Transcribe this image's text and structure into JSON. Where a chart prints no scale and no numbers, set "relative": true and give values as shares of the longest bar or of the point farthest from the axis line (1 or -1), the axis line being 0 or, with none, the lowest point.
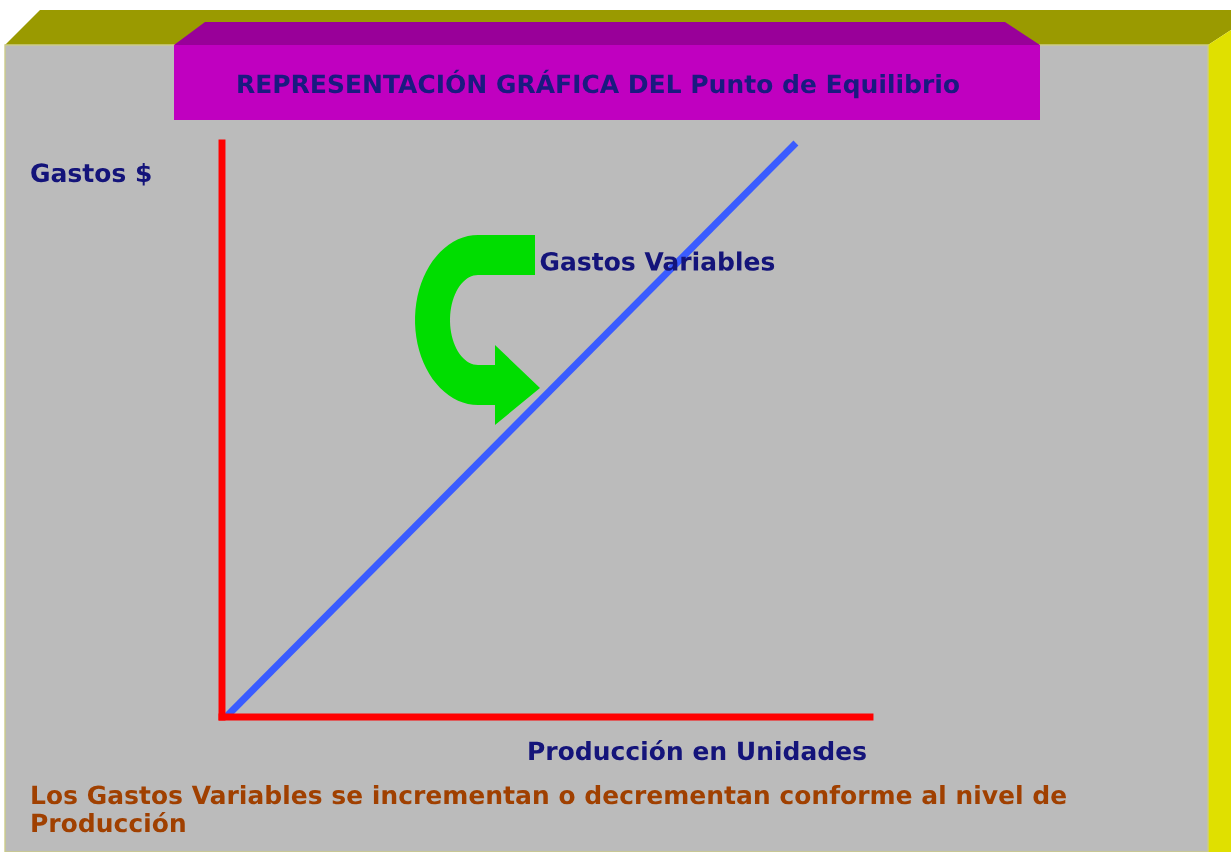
{
  "chart_data": {
    "type": "line",
    "title": "REPRESENTACIÓN GRÁFICA DEL Punto de Equilibrio",
    "ylabel": "Gastos $",
    "xlabel": "Producción en Unidades",
    "relative": true,
    "categories": [
      null,
      null
    ],
    "series": [
      {
        "name": "Gastos Variables",
        "color": "#3a5cff",
        "values": [
          0,
          1
        ]
      }
    ],
    "annotations": [
      "Los Gastos Variables se incrementan o decrementan conforme al nivel de Producción"
    ]
  }
}
